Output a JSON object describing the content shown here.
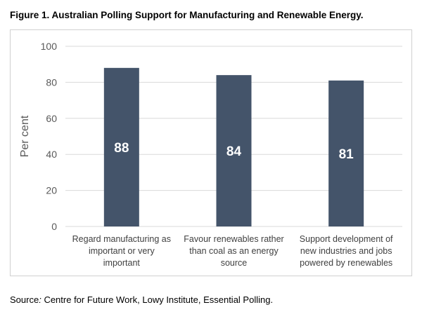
{
  "figure": {
    "title": "Figure 1. Australian Polling Support for Manufacturing and Renewable Energy."
  },
  "source": {
    "label": "Source",
    "separator": ":",
    "text": " Centre for Future Work, Lowy Institute, Essential Polling."
  },
  "colors": {
    "bar": "#44546a",
    "grid": "#d9d9d9",
    "axis_text": "#595959"
  },
  "chart_data": {
    "type": "bar",
    "ylabel": "Per cent",
    "ylim": [
      0,
      100
    ],
    "yticks": [
      "0",
      "20",
      "40",
      "60",
      "80",
      "100"
    ],
    "grid": true,
    "categories": [
      [
        "Regard manufacturing as",
        "important or very",
        "important"
      ],
      [
        "Favour renewables rather",
        "than coal as an energy",
        "source"
      ],
      [
        "Support development of",
        "new industries and jobs",
        "powered by renewables"
      ]
    ],
    "values": [
      88,
      84,
      81
    ],
    "data_labels": [
      "88",
      "84",
      "81"
    ]
  }
}
